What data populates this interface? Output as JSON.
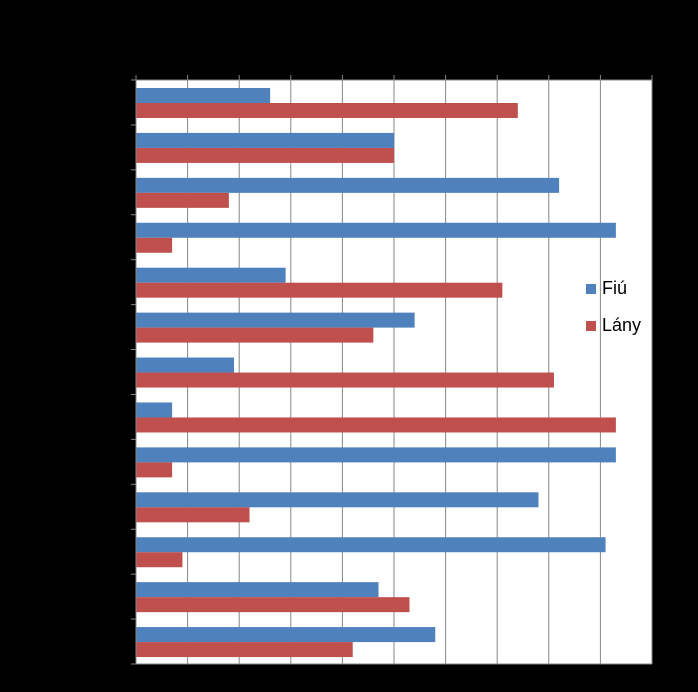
{
  "chart_data": {
    "type": "bar",
    "orientation": "horizontal",
    "title": "",
    "xlabel": "",
    "ylabel": "",
    "xlim": [
      0,
      100
    ],
    "grid": true,
    "legend_position": "right",
    "categories": [
      "",
      "",
      "",
      "",
      "",
      "",
      "",
      "",
      "",
      "",
      "",
      "",
      ""
    ],
    "series": [
      {
        "name": "Fiú",
        "color": "#4F81BD",
        "values": [
          26,
          50,
          82,
          93,
          29,
          54,
          19,
          7,
          93,
          78,
          91,
          47,
          58
        ]
      },
      {
        "name": "Lány",
        "color": "#C0504D",
        "values": [
          74,
          50,
          18,
          7,
          71,
          46,
          81,
          93,
          7,
          22,
          9,
          53,
          42
        ]
      }
    ]
  }
}
